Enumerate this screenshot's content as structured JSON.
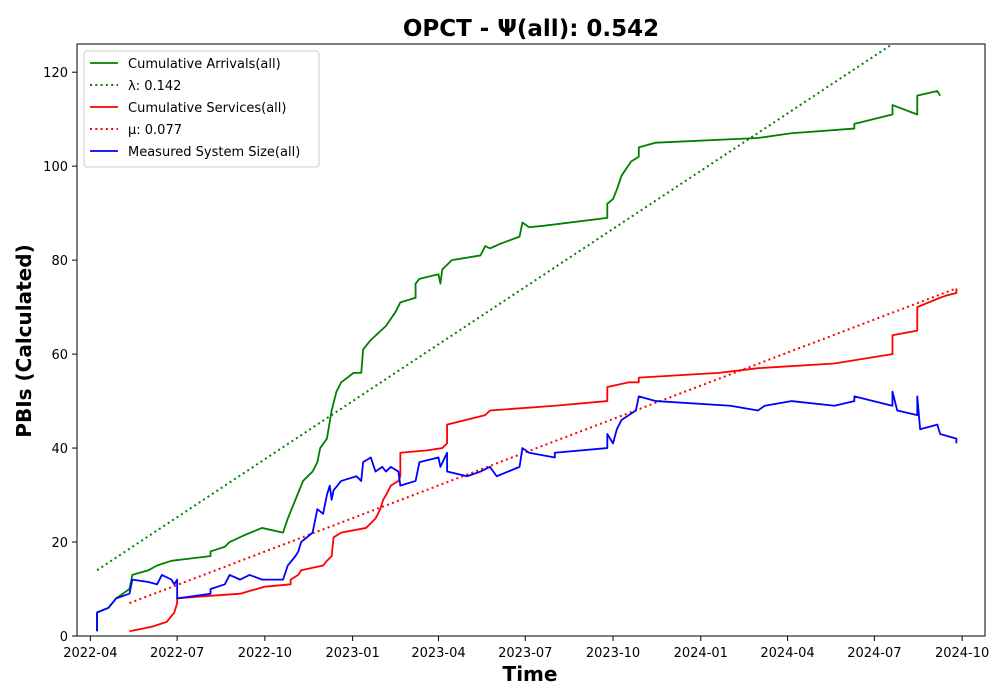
{
  "chart_data": {
    "type": "line",
    "title": "OPCT -  Ψ(all): 0.542",
    "xlabel": "Time",
    "ylabel": "PBIs (Calculated)",
    "xlim": [
      "2022-03-18",
      "2024-10-25"
    ],
    "ylim": [
      0,
      126
    ],
    "xticks": [
      "2022-04",
      "2022-07",
      "2022-10",
      "2023-01",
      "2023-04",
      "2023-07",
      "2023-10",
      "2024-01",
      "2024-04",
      "2024-07",
      "2024-10"
    ],
    "yticks": [
      0,
      20,
      40,
      60,
      80,
      100,
      120
    ],
    "grid": false,
    "legend_position": "top-left",
    "series": [
      {
        "name": "Cumulative Arrivals(all)",
        "color": "#008000",
        "style": "solid",
        "points": [
          [
            "2022-04-08",
            1
          ],
          [
            "2022-04-08",
            5
          ],
          [
            "2022-04-20",
            6
          ],
          [
            "2022-04-28",
            8
          ],
          [
            "2022-05-05",
            9
          ],
          [
            "2022-05-12",
            10
          ],
          [
            "2022-05-15",
            13
          ],
          [
            "2022-06-01",
            14
          ],
          [
            "2022-06-10",
            15
          ],
          [
            "2022-06-25",
            16
          ],
          [
            "2022-07-15",
            16.5
          ],
          [
            "2022-08-05",
            17
          ],
          [
            "2022-08-05",
            18
          ],
          [
            "2022-08-20",
            19
          ],
          [
            "2022-08-25",
            20
          ],
          [
            "2022-09-10",
            21.5
          ],
          [
            "2022-09-28",
            23
          ],
          [
            "2022-10-20",
            22
          ],
          [
            "2022-10-25",
            25
          ],
          [
            "2022-11-02",
            29
          ],
          [
            "2022-11-10",
            33
          ],
          [
            "2022-11-20",
            35
          ],
          [
            "2022-11-25",
            37
          ],
          [
            "2022-11-28",
            40
          ],
          [
            "2022-12-05",
            42
          ],
          [
            "2022-12-10",
            48
          ],
          [
            "2022-12-15",
            52
          ],
          [
            "2022-12-20",
            54
          ],
          [
            "2023-01-02",
            56
          ],
          [
            "2023-01-10",
            56
          ],
          [
            "2023-01-12",
            61
          ],
          [
            "2023-01-20",
            63
          ],
          [
            "2023-02-05",
            66
          ],
          [
            "2023-02-15",
            69
          ],
          [
            "2023-02-20",
            71
          ],
          [
            "2023-03-08",
            72
          ],
          [
            "2023-03-08",
            75
          ],
          [
            "2023-03-12",
            76
          ],
          [
            "2023-04-01",
            77
          ],
          [
            "2023-04-03",
            75
          ],
          [
            "2023-04-05",
            78
          ],
          [
            "2023-04-15",
            80
          ],
          [
            "2023-05-15",
            81
          ],
          [
            "2023-05-20",
            83
          ],
          [
            "2023-05-25",
            82.5
          ],
          [
            "2023-06-05",
            83.5
          ],
          [
            "2023-06-25",
            85
          ],
          [
            "2023-06-28",
            88
          ],
          [
            "2023-07-05",
            87
          ],
          [
            "2023-07-20",
            87.3
          ],
          [
            "2023-09-25",
            89
          ],
          [
            "2023-09-25",
            92
          ],
          [
            "2023-10-01",
            93
          ],
          [
            "2023-10-05",
            95
          ],
          [
            "2023-10-10",
            98
          ],
          [
            "2023-10-20",
            101
          ],
          [
            "2023-10-28",
            102
          ],
          [
            "2023-10-28",
            104
          ],
          [
            "2023-11-15",
            105
          ],
          [
            "2024-03-01",
            106
          ],
          [
            "2024-04-05",
            107
          ],
          [
            "2024-06-10",
            108
          ],
          [
            "2024-06-10",
            109
          ],
          [
            "2024-07-20",
            111
          ],
          [
            "2024-07-20",
            113
          ],
          [
            "2024-08-15",
            111
          ],
          [
            "2024-08-15",
            115
          ],
          [
            "2024-09-05",
            116
          ],
          [
            "2024-09-08",
            115
          ]
        ]
      },
      {
        "name": "λ: 0.142",
        "color": "#008000",
        "style": "dotted",
        "points": [
          [
            "2022-04-08",
            14
          ],
          [
            "2024-07-20",
            126
          ]
        ]
      },
      {
        "name": "Cumulative Services(all)",
        "color": "#ff0000",
        "style": "solid",
        "points": [
          [
            "2022-05-12",
            1
          ],
          [
            "2022-06-05",
            2
          ],
          [
            "2022-06-20",
            3
          ],
          [
            "2022-06-28",
            5
          ],
          [
            "2022-07-01",
            7
          ],
          [
            "2022-07-01",
            8
          ],
          [
            "2022-08-01",
            8.5
          ],
          [
            "2022-09-05",
            9
          ],
          [
            "2022-10-01",
            10.5
          ],
          [
            "2022-10-28",
            11
          ],
          [
            "2022-10-28",
            12
          ],
          [
            "2022-11-05",
            13
          ],
          [
            "2022-11-08",
            14
          ],
          [
            "2022-12-01",
            15
          ],
          [
            "2022-12-05",
            16
          ],
          [
            "2022-12-10",
            17
          ],
          [
            "2022-12-12",
            21
          ],
          [
            "2022-12-20",
            22
          ],
          [
            "2023-01-15",
            23
          ],
          [
            "2023-01-20",
            24
          ],
          [
            "2023-01-25",
            25
          ],
          [
            "2023-01-30",
            27
          ],
          [
            "2023-02-02",
            29
          ],
          [
            "2023-02-05",
            30
          ],
          [
            "2023-02-10",
            32
          ],
          [
            "2023-02-18",
            33
          ],
          [
            "2023-02-20",
            34
          ],
          [
            "2023-02-20",
            39
          ],
          [
            "2023-03-20",
            39.5
          ],
          [
            "2023-04-05",
            40
          ],
          [
            "2023-04-10",
            41
          ],
          [
            "2023-04-10",
            45
          ],
          [
            "2023-05-20",
            47
          ],
          [
            "2023-05-25",
            48
          ],
          [
            "2023-08-01",
            49
          ],
          [
            "2023-09-25",
            50
          ],
          [
            "2023-09-25",
            53
          ],
          [
            "2023-10-18",
            54
          ],
          [
            "2023-10-28",
            54
          ],
          [
            "2023-10-28",
            55
          ],
          [
            "2024-01-20",
            56
          ],
          [
            "2024-03-01",
            57
          ],
          [
            "2024-05-20",
            58
          ],
          [
            "2024-07-20",
            60
          ],
          [
            "2024-07-20",
            64
          ],
          [
            "2024-08-15",
            65
          ],
          [
            "2024-08-15",
            70
          ],
          [
            "2024-09-08",
            72
          ],
          [
            "2024-09-15",
            72.5
          ],
          [
            "2024-09-25",
            73
          ],
          [
            "2024-09-25",
            74
          ]
        ]
      },
      {
        "name": "μ: 0.077",
        "color": "#ff0000",
        "style": "dotted",
        "points": [
          [
            "2022-05-12",
            7
          ],
          [
            "2024-09-25",
            74
          ]
        ]
      },
      {
        "name": "Measured System Size(all)",
        "color": "#0000ff",
        "style": "solid",
        "points": [
          [
            "2022-04-08",
            1
          ],
          [
            "2022-04-08",
            5
          ],
          [
            "2022-04-20",
            6
          ],
          [
            "2022-04-28",
            8
          ],
          [
            "2022-05-05",
            8.5
          ],
          [
            "2022-05-12",
            9
          ],
          [
            "2022-05-15",
            12
          ],
          [
            "2022-06-01",
            11.5
          ],
          [
            "2022-06-10",
            11
          ],
          [
            "2022-06-15",
            13
          ],
          [
            "2022-06-25",
            12
          ],
          [
            "2022-06-28",
            11
          ],
          [
            "2022-07-01",
            12
          ],
          [
            "2022-07-01",
            8
          ],
          [
            "2022-08-05",
            9
          ],
          [
            "2022-08-05",
            10
          ],
          [
            "2022-08-20",
            11
          ],
          [
            "2022-08-25",
            13
          ],
          [
            "2022-09-05",
            12
          ],
          [
            "2022-09-15",
            13
          ],
          [
            "2022-09-28",
            12
          ],
          [
            "2022-10-20",
            12
          ],
          [
            "2022-10-25",
            15
          ],
          [
            "2022-11-02",
            17
          ],
          [
            "2022-11-05",
            18
          ],
          [
            "2022-11-08",
            20
          ],
          [
            "2022-11-20",
            22
          ],
          [
            "2022-11-25",
            27
          ],
          [
            "2022-12-01",
            26
          ],
          [
            "2022-12-05",
            30
          ],
          [
            "2022-12-08",
            32
          ],
          [
            "2022-12-10",
            29
          ],
          [
            "2022-12-12",
            31
          ],
          [
            "2022-12-20",
            33
          ],
          [
            "2023-01-05",
            34
          ],
          [
            "2023-01-10",
            33
          ],
          [
            "2023-01-12",
            37
          ],
          [
            "2023-01-20",
            38
          ],
          [
            "2023-01-25",
            35
          ],
          [
            "2023-02-01",
            36
          ],
          [
            "2023-02-05",
            35
          ],
          [
            "2023-02-10",
            36
          ],
          [
            "2023-02-18",
            35
          ],
          [
            "2023-02-20",
            32
          ],
          [
            "2023-03-08",
            33
          ],
          [
            "2023-03-12",
            37
          ],
          [
            "2023-04-01",
            38
          ],
          [
            "2023-04-03",
            36
          ],
          [
            "2023-04-10",
            39
          ],
          [
            "2023-04-10",
            35
          ],
          [
            "2023-05-01",
            34
          ],
          [
            "2023-05-15",
            35
          ],
          [
            "2023-05-25",
            36
          ],
          [
            "2023-06-01",
            34
          ],
          [
            "2023-06-25",
            36
          ],
          [
            "2023-06-28",
            40
          ],
          [
            "2023-07-05",
            39
          ],
          [
            "2023-08-01",
            38
          ],
          [
            "2023-08-01",
            39
          ],
          [
            "2023-09-25",
            40
          ],
          [
            "2023-09-25",
            43
          ],
          [
            "2023-10-01",
            41
          ],
          [
            "2023-10-05",
            44
          ],
          [
            "2023-10-10",
            46
          ],
          [
            "2023-10-25",
            48
          ],
          [
            "2023-10-28",
            51
          ],
          [
            "2023-11-15",
            50
          ],
          [
            "2024-02-01",
            49
          ],
          [
            "2024-03-01",
            48
          ],
          [
            "2024-03-08",
            49
          ],
          [
            "2024-04-05",
            50
          ],
          [
            "2024-05-20",
            49
          ],
          [
            "2024-06-10",
            50
          ],
          [
            "2024-06-10",
            51
          ],
          [
            "2024-07-20",
            49
          ],
          [
            "2024-07-20",
            52
          ],
          [
            "2024-07-25",
            48
          ],
          [
            "2024-08-15",
            47
          ],
          [
            "2024-08-15",
            51
          ],
          [
            "2024-08-18",
            44
          ],
          [
            "2024-09-05",
            45
          ],
          [
            "2024-09-08",
            43
          ],
          [
            "2024-09-25",
            42
          ],
          [
            "2024-09-25",
            41
          ]
        ]
      }
    ]
  }
}
